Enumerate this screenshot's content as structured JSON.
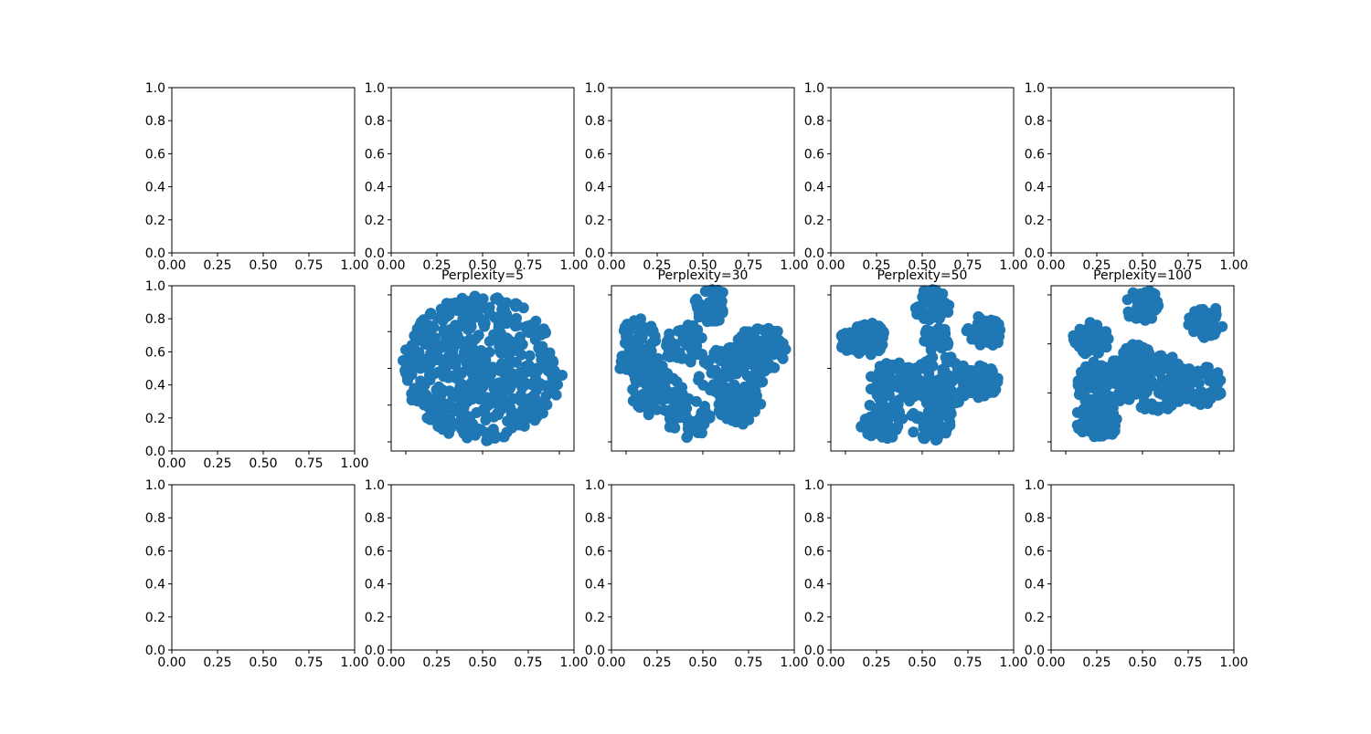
{
  "figure": {
    "background": "#ffffff"
  },
  "chart_data": [
    {
      "type": "scatter",
      "title": "",
      "xlim": [
        0,
        1
      ],
      "ylim": [
        0,
        1
      ],
      "xticks": [
        "0.00",
        "0.25",
        "0.50",
        "0.75",
        "1.00"
      ],
      "yticks": [
        "0.0",
        "0.2",
        "0.4",
        "0.6",
        "0.8",
        "1.0"
      ],
      "points": []
    },
    {
      "type": "scatter",
      "title": "",
      "xlim": [
        0,
        1
      ],
      "ylim": [
        0,
        1
      ],
      "xticks": [
        "0.00",
        "0.25",
        "0.50",
        "0.75",
        "1.00"
      ],
      "yticks": [
        "0.0",
        "0.2",
        "0.4",
        "0.6",
        "0.8",
        "1.0"
      ],
      "points": []
    },
    {
      "type": "scatter",
      "title": "",
      "xlim": [
        0,
        1
      ],
      "ylim": [
        0,
        1
      ],
      "xticks": [
        "0.00",
        "0.25",
        "0.50",
        "0.75",
        "1.00"
      ],
      "yticks": [
        "0.0",
        "0.2",
        "0.4",
        "0.6",
        "0.8",
        "1.0"
      ],
      "points": []
    },
    {
      "type": "scatter",
      "title": "",
      "xlim": [
        0,
        1
      ],
      "ylim": [
        0,
        1
      ],
      "xticks": [
        "0.00",
        "0.25",
        "0.50",
        "0.75",
        "1.00"
      ],
      "yticks": [
        "0.0",
        "0.2",
        "0.4",
        "0.6",
        "0.8",
        "1.0"
      ],
      "points": []
    },
    {
      "type": "scatter",
      "title": "",
      "xlim": [
        0,
        1
      ],
      "ylim": [
        0,
        1
      ],
      "xticks": [
        "0.00",
        "0.25",
        "0.50",
        "0.75",
        "1.00"
      ],
      "yticks": [
        "0.0",
        "0.2",
        "0.4",
        "0.6",
        "0.8",
        "1.0"
      ],
      "points": []
    },
    {
      "type": "scatter",
      "title": "",
      "xlim": [
        0,
        1
      ],
      "ylim": [
        0,
        1
      ],
      "xticks": [
        "0.00",
        "0.25",
        "0.50",
        "0.75",
        "1.00"
      ],
      "yticks": [
        "0.0",
        "0.2",
        "0.4",
        "0.6",
        "0.8",
        "1.0"
      ],
      "points": []
    },
    {
      "type": "scatter",
      "title": "Perplexity=5",
      "color": "#1f77b4",
      "hidden_tick_labels": true,
      "xticks_count": 3,
      "yticks_count": 5,
      "clusters": [
        {
          "cx": 0.5,
          "cy": 0.5,
          "r": 0.44,
          "n": 520
        }
      ]
    },
    {
      "type": "scatter",
      "title": "Perplexity=30",
      "color": "#1f77b4",
      "hidden_tick_labels": true,
      "xticks_count": 3,
      "yticks_count": 2,
      "clusters": [
        {
          "cx": 0.16,
          "cy": 0.52,
          "r": 0.12,
          "n": 60
        },
        {
          "cx": 0.15,
          "cy": 0.7,
          "r": 0.1,
          "n": 45
        },
        {
          "cx": 0.4,
          "cy": 0.65,
          "r": 0.12,
          "n": 60
        },
        {
          "cx": 0.55,
          "cy": 0.88,
          "r": 0.1,
          "n": 45
        },
        {
          "cx": 0.25,
          "cy": 0.35,
          "r": 0.14,
          "n": 70
        },
        {
          "cx": 0.42,
          "cy": 0.2,
          "r": 0.12,
          "n": 60
        },
        {
          "cx": 0.65,
          "cy": 0.45,
          "r": 0.18,
          "n": 110
        },
        {
          "cx": 0.82,
          "cy": 0.62,
          "r": 0.14,
          "n": 70
        },
        {
          "cx": 0.7,
          "cy": 0.28,
          "r": 0.12,
          "n": 55
        }
      ]
    },
    {
      "type": "scatter",
      "title": "Perplexity=50",
      "color": "#1f77b4",
      "hidden_tick_labels": true,
      "xticks_count": 3,
      "yticks_count": 3,
      "clusters": [
        {
          "cx": 0.2,
          "cy": 0.68,
          "r": 0.1,
          "n": 50
        },
        {
          "cx": 0.1,
          "cy": 0.66,
          "r": 0.06,
          "n": 25
        },
        {
          "cx": 0.55,
          "cy": 0.88,
          "r": 0.1,
          "n": 45
        },
        {
          "cx": 0.84,
          "cy": 0.72,
          "r": 0.1,
          "n": 45
        },
        {
          "cx": 0.35,
          "cy": 0.4,
          "r": 0.14,
          "n": 80
        },
        {
          "cx": 0.6,
          "cy": 0.42,
          "r": 0.16,
          "n": 100
        },
        {
          "cx": 0.82,
          "cy": 0.42,
          "r": 0.1,
          "n": 50
        },
        {
          "cx": 0.28,
          "cy": 0.18,
          "r": 0.12,
          "n": 60
        },
        {
          "cx": 0.55,
          "cy": 0.18,
          "r": 0.12,
          "n": 60
        },
        {
          "cx": 0.58,
          "cy": 0.68,
          "r": 0.08,
          "n": 35
        }
      ]
    },
    {
      "type": "scatter",
      "title": "Perplexity=100",
      "color": "#1f77b4",
      "hidden_tick_labels": true,
      "xticks_count": 3,
      "yticks_count": 4,
      "clusters": [
        {
          "cx": 0.22,
          "cy": 0.68,
          "r": 0.1,
          "n": 45
        },
        {
          "cx": 0.5,
          "cy": 0.88,
          "r": 0.1,
          "n": 45
        },
        {
          "cx": 0.85,
          "cy": 0.78,
          "r": 0.1,
          "n": 45
        },
        {
          "cx": 0.3,
          "cy": 0.4,
          "r": 0.16,
          "n": 100
        },
        {
          "cx": 0.58,
          "cy": 0.42,
          "r": 0.18,
          "n": 120
        },
        {
          "cx": 0.82,
          "cy": 0.4,
          "r": 0.12,
          "n": 60
        },
        {
          "cx": 0.25,
          "cy": 0.18,
          "r": 0.12,
          "n": 60
        },
        {
          "cx": 0.48,
          "cy": 0.55,
          "r": 0.1,
          "n": 45
        }
      ]
    },
    {
      "type": "scatter",
      "title": "",
      "xlim": [
        0,
        1
      ],
      "ylim": [
        0,
        1
      ],
      "xticks": [
        "0.00",
        "0.25",
        "0.50",
        "0.75",
        "1.00"
      ],
      "yticks": [
        "0.0",
        "0.2",
        "0.4",
        "0.6",
        "0.8",
        "1.0"
      ],
      "points": []
    },
    {
      "type": "scatter",
      "title": "",
      "xlim": [
        0,
        1
      ],
      "ylim": [
        0,
        1
      ],
      "xticks": [
        "0.00",
        "0.25",
        "0.50",
        "0.75",
        "1.00"
      ],
      "yticks": [
        "0.0",
        "0.2",
        "0.4",
        "0.6",
        "0.8",
        "1.0"
      ],
      "points": []
    },
    {
      "type": "scatter",
      "title": "",
      "xlim": [
        0,
        1
      ],
      "ylim": [
        0,
        1
      ],
      "xticks": [
        "0.00",
        "0.25",
        "0.50",
        "0.75",
        "1.00"
      ],
      "yticks": [
        "0.0",
        "0.2",
        "0.4",
        "0.6",
        "0.8",
        "1.0"
      ],
      "points": []
    },
    {
      "type": "scatter",
      "title": "",
      "xlim": [
        0,
        1
      ],
      "ylim": [
        0,
        1
      ],
      "xticks": [
        "0.00",
        "0.25",
        "0.50",
        "0.75",
        "1.00"
      ],
      "yticks": [
        "0.0",
        "0.2",
        "0.4",
        "0.6",
        "0.8",
        "1.0"
      ],
      "points": []
    },
    {
      "type": "scatter",
      "title": "",
      "xlim": [
        0,
        1
      ],
      "ylim": [
        0,
        1
      ],
      "xticks": [
        "0.00",
        "0.25",
        "0.50",
        "0.75",
        "1.00"
      ],
      "yticks": [
        "0.0",
        "0.2",
        "0.4",
        "0.6",
        "0.8",
        "1.0"
      ],
      "points": []
    }
  ]
}
